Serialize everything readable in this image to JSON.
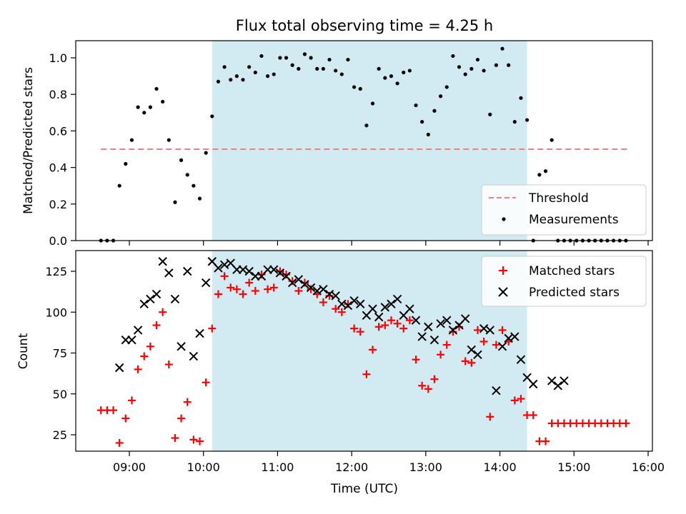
{
  "chart_data": [
    {
      "type": "scatter",
      "title": "Flux total observing time = 4.25 h",
      "ylabel": "Matched/Predicted stars",
      "xlabel": "",
      "ylim": [
        0,
        1.1
      ],
      "yticks": [
        "0.0",
        "0.2",
        "0.4",
        "0.6",
        "0.8",
        "1.0"
      ],
      "x_tick_positions": [
        "09:00",
        "10:00",
        "11:00",
        "12:00",
        "13:00",
        "14:00",
        "15:00",
        "16:00"
      ],
      "x_tick_labels_shown": false,
      "shaded_span": [
        "10:07",
        "14:22"
      ],
      "shade_color": "#add8e6",
      "legend_position": "lower right",
      "grid": false,
      "threshold": {
        "name": "Threshold",
        "y": 0.5,
        "x_range": [
          "08:37",
          "15:44"
        ],
        "color": "#f08080",
        "style": "dashed"
      },
      "series": [
        {
          "name": "Measurements",
          "marker": "dot",
          "color": "#000000",
          "points": [
            [
              "08:37",
              0.0
            ],
            [
              "08:42",
              0.0
            ],
            [
              "08:47",
              0.0
            ],
            [
              "08:52",
              0.3
            ],
            [
              "08:57",
              0.42
            ],
            [
              "09:02",
              0.55
            ],
            [
              "09:07",
              0.73
            ],
            [
              "09:12",
              0.7
            ],
            [
              "09:17",
              0.73
            ],
            [
              "09:22",
              0.83
            ],
            [
              "09:27",
              0.76
            ],
            [
              "09:32",
              0.55
            ],
            [
              "09:37",
              0.21
            ],
            [
              "09:42",
              0.44
            ],
            [
              "09:47",
              0.36
            ],
            [
              "09:52",
              0.3
            ],
            [
              "09:57",
              0.23
            ],
            [
              "10:02",
              0.48
            ],
            [
              "10:07",
              0.68
            ],
            [
              "10:12",
              0.87
            ],
            [
              "10:17",
              0.95
            ],
            [
              "10:22",
              0.88
            ],
            [
              "10:27",
              0.9
            ],
            [
              "10:32",
              0.88
            ],
            [
              "10:37",
              0.95
            ],
            [
              "10:42",
              0.92
            ],
            [
              "10:47",
              1.01
            ],
            [
              "10:52",
              0.9
            ],
            [
              "10:57",
              0.91
            ],
            [
              "11:02",
              1.0
            ],
            [
              "11:07",
              1.0
            ],
            [
              "11:12",
              0.96
            ],
            [
              "11:17",
              0.94
            ],
            [
              "11:22",
              1.02
            ],
            [
              "11:27",
              1.0
            ],
            [
              "11:32",
              0.94
            ],
            [
              "11:37",
              0.94
            ],
            [
              "11:42",
              0.99
            ],
            [
              "11:47",
              0.93
            ],
            [
              "11:52",
              0.91
            ],
            [
              "11:57",
              0.99
            ],
            [
              "12:02",
              0.84
            ],
            [
              "12:07",
              0.83
            ],
            [
              "12:12",
              0.63
            ],
            [
              "12:17",
              0.75
            ],
            [
              "12:22",
              0.94
            ],
            [
              "12:27",
              0.89
            ],
            [
              "12:32",
              0.9
            ],
            [
              "12:37",
              0.86
            ],
            [
              "12:42",
              0.92
            ],
            [
              "12:47",
              0.93
            ],
            [
              "12:52",
              0.74
            ],
            [
              "12:57",
              0.65
            ],
            [
              "13:02",
              0.58
            ],
            [
              "13:07",
              0.71
            ],
            [
              "13:12",
              0.79
            ],
            [
              "13:17",
              0.84
            ],
            [
              "13:22",
              1.01
            ],
            [
              "13:27",
              0.95
            ],
            [
              "13:32",
              0.91
            ],
            [
              "13:37",
              0.94
            ],
            [
              "13:42",
              0.99
            ],
            [
              "13:47",
              0.93
            ],
            [
              "13:52",
              0.69
            ],
            [
              "13:57",
              0.96
            ],
            [
              "14:02",
              1.05
            ],
            [
              "14:07",
              0.96
            ],
            [
              "14:12",
              0.65
            ],
            [
              "14:17",
              0.78
            ],
            [
              "14:22",
              0.66
            ],
            [
              "14:27",
              0.0
            ],
            [
              "14:32",
              0.36
            ],
            [
              "14:37",
              0.38
            ],
            [
              "14:42",
              0.55
            ],
            [
              "14:47",
              0.0
            ],
            [
              "14:52",
              0.0
            ],
            [
              "14:57",
              0.0
            ],
            [
              "15:02",
              0.0
            ],
            [
              "15:07",
              0.0
            ],
            [
              "15:12",
              0.0
            ],
            [
              "15:17",
              0.0
            ],
            [
              "15:22",
              0.0
            ],
            [
              "15:27",
              0.0
            ],
            [
              "15:32",
              0.0
            ],
            [
              "15:37",
              0.0
            ],
            [
              "15:42",
              0.0
            ]
          ]
        }
      ]
    },
    {
      "type": "scatter",
      "title": "",
      "ylabel": "Count",
      "xlabel": "Time (UTC)",
      "ylim": [
        14,
        138
      ],
      "yticks": [
        "25",
        "50",
        "75",
        "100",
        "125"
      ],
      "x_tick_positions": [
        "09:00",
        "10:00",
        "11:00",
        "12:00",
        "13:00",
        "14:00",
        "15:00",
        "16:00"
      ],
      "x_tick_labels_shown": true,
      "shaded_span": [
        "10:07",
        "14:22"
      ],
      "shade_color": "#add8e6",
      "legend_position": "upper right",
      "grid": false,
      "series": [
        {
          "name": "Matched stars",
          "marker": "plus",
          "color": "#ff0000",
          "points": [
            [
              "08:37",
              40
            ],
            [
              "08:42",
              40
            ],
            [
              "08:47",
              40
            ],
            [
              "08:52",
              20
            ],
            [
              "08:57",
              35
            ],
            [
              "09:02",
              46
            ],
            [
              "09:07",
              65
            ],
            [
              "09:12",
              73
            ],
            [
              "09:17",
              79
            ],
            [
              "09:22",
              92
            ],
            [
              "09:27",
              100
            ],
            [
              "09:32",
              68
            ],
            [
              "09:37",
              23
            ],
            [
              "09:42",
              35
            ],
            [
              "09:47",
              45
            ],
            [
              "09:52",
              22
            ],
            [
              "09:57",
              21
            ],
            [
              "10:02",
              57
            ],
            [
              "10:07",
              90
            ],
            [
              "10:12",
              111
            ],
            [
              "10:17",
              122
            ],
            [
              "10:22",
              115
            ],
            [
              "10:27",
              114
            ],
            [
              "10:32",
              111
            ],
            [
              "10:37",
              118
            ],
            [
              "10:42",
              113
            ],
            [
              "10:47",
              123
            ],
            [
              "10:52",
              114
            ],
            [
              "10:57",
              115
            ],
            [
              "11:02",
              125
            ],
            [
              "11:07",
              123
            ],
            [
              "11:12",
              119
            ],
            [
              "11:17",
              113
            ],
            [
              "11:22",
              118
            ],
            [
              "11:27",
              114
            ],
            [
              "11:32",
              111
            ],
            [
              "11:37",
              106
            ],
            [
              "11:42",
              110
            ],
            [
              "11:47",
              102
            ],
            [
              "11:52",
              100
            ],
            [
              "11:57",
              105
            ],
            [
              "12:02",
              90
            ],
            [
              "12:07",
              88
            ],
            [
              "12:12",
              62
            ],
            [
              "12:17",
              77
            ],
            [
              "12:22",
              91
            ],
            [
              "12:27",
              92
            ],
            [
              "12:32",
              95
            ],
            [
              "12:37",
              93
            ],
            [
              "12:42",
              90
            ],
            [
              "12:47",
              95
            ],
            [
              "12:52",
              71
            ],
            [
              "12:57",
              55
            ],
            [
              "13:02",
              53
            ],
            [
              "13:07",
              59
            ],
            [
              "13:12",
              74
            ],
            [
              "13:17",
              80
            ],
            [
              "13:22",
              88
            ],
            [
              "13:27",
              91
            ],
            [
              "13:32",
              70
            ],
            [
              "13:37",
              69
            ],
            [
              "13:42",
              89
            ],
            [
              "13:47",
              82
            ],
            [
              "13:52",
              36
            ],
            [
              "13:57",
              80
            ],
            [
              "14:02",
              89
            ],
            [
              "14:07",
              82
            ],
            [
              "14:12",
              46
            ],
            [
              "14:17",
              47
            ],
            [
              "14:22",
              37
            ],
            [
              "14:27",
              37
            ],
            [
              "14:32",
              21
            ],
            [
              "14:37",
              21
            ],
            [
              "14:42",
              32
            ],
            [
              "14:47",
              32
            ],
            [
              "14:52",
              32
            ],
            [
              "14:57",
              32
            ],
            [
              "15:02",
              32
            ],
            [
              "15:07",
              32
            ],
            [
              "15:12",
              32
            ],
            [
              "15:17",
              32
            ],
            [
              "15:22",
              32
            ],
            [
              "15:27",
              32
            ],
            [
              "15:32",
              32
            ],
            [
              "15:37",
              32
            ],
            [
              "15:42",
              32
            ]
          ]
        },
        {
          "name": "Predicted stars",
          "marker": "x",
          "color": "#000000",
          "points": [
            [
              "08:52",
              66
            ],
            [
              "08:57",
              83
            ],
            [
              "09:02",
              83
            ],
            [
              "09:07",
              89
            ],
            [
              "09:12",
              105
            ],
            [
              "09:17",
              108
            ],
            [
              "09:22",
              111
            ],
            [
              "09:27",
              131
            ],
            [
              "09:32",
              124
            ],
            [
              "09:37",
              108
            ],
            [
              "09:42",
              79
            ],
            [
              "09:47",
              125
            ],
            [
              "09:52",
              73
            ],
            [
              "09:57",
              87
            ],
            [
              "10:02",
              118
            ],
            [
              "10:07",
              131
            ],
            [
              "10:12",
              127
            ],
            [
              "10:17",
              129
            ],
            [
              "10:22",
              130
            ],
            [
              "10:27",
              126
            ],
            [
              "10:32",
              126
            ],
            [
              "10:37",
              125
            ],
            [
              "10:42",
              122
            ],
            [
              "10:47",
              122
            ],
            [
              "10:52",
              126
            ],
            [
              "10:57",
              126
            ],
            [
              "11:02",
              124
            ],
            [
              "11:07",
              122
            ],
            [
              "11:12",
              118
            ],
            [
              "11:17",
              120
            ],
            [
              "11:22",
              117
            ],
            [
              "11:27",
              115
            ],
            [
              "11:32",
              113
            ],
            [
              "11:37",
              114
            ],
            [
              "11:42",
              111
            ],
            [
              "11:47",
              110
            ],
            [
              "11:52",
              105
            ],
            [
              "11:57",
              104
            ],
            [
              "12:02",
              107
            ],
            [
              "12:07",
              105
            ],
            [
              "12:12",
              98
            ],
            [
              "12:17",
              102
            ],
            [
              "12:22",
              97
            ],
            [
              "12:27",
              103
            ],
            [
              "12:32",
              105
            ],
            [
              "12:37",
              108
            ],
            [
              "12:42",
              98
            ],
            [
              "12:47",
              102
            ],
            [
              "12:52",
              95
            ],
            [
              "12:57",
              85
            ],
            [
              "13:02",
              91
            ],
            [
              "13:07",
              83
            ],
            [
              "13:12",
              93
            ],
            [
              "13:17",
              95
            ],
            [
              "13:22",
              89
            ],
            [
              "13:27",
              92
            ],
            [
              "13:32",
              96
            ],
            [
              "13:37",
              77
            ],
            [
              "13:42",
              74
            ],
            [
              "13:47",
              90
            ],
            [
              "13:52",
              89
            ],
            [
              "13:57",
              52
            ],
            [
              "14:02",
              79
            ],
            [
              "14:07",
              84
            ],
            [
              "14:12",
              85
            ],
            [
              "14:17",
              71
            ],
            [
              "14:22",
              60
            ],
            [
              "14:27",
              56
            ],
            [
              "14:42",
              58
            ],
            [
              "14:47",
              55
            ],
            [
              "14:52",
              58
            ]
          ]
        }
      ]
    }
  ]
}
